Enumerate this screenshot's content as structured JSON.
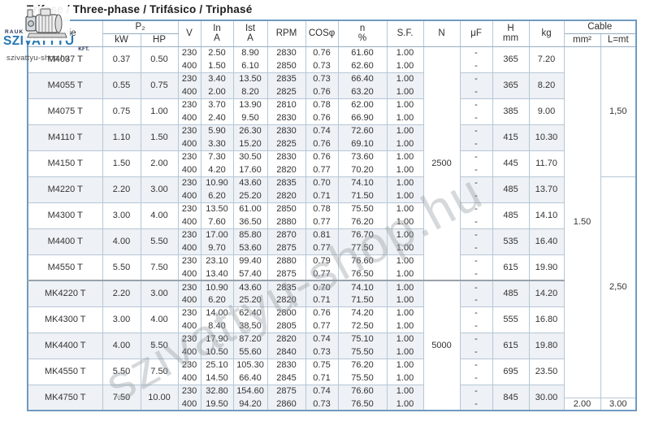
{
  "title": "Trifase / Three-phase / Trifásico / Triphasé",
  "logo": {
    "rauker": "RAUKER",
    "brand": "SZIVATTYÚ",
    "kft": "KFT.",
    "site": "szivattyu-shop.hu"
  },
  "watermark": "szivattyu-shop.hu",
  "header": {
    "serie": "Serie",
    "p2": "P₂",
    "kw": "kW",
    "hp": "HP",
    "v": "V",
    "in_a": "In\nA",
    "ist_a": "Ist\nA",
    "rpm": "RPM",
    "cos": "COSφ",
    "n_pct": "n\n%",
    "sf": "S.F.",
    "n": "N",
    "uf": "μF",
    "h_mm": "H\nmm",
    "kg": "kg",
    "cable": "Cable",
    "mm2": "mm²",
    "lmt": "L=mt"
  },
  "uf_dash": "-",
  "groups": [
    {
      "model": "M4037 T",
      "kw": "0.37",
      "hp": "0.50",
      "h": "365",
      "kg": "7.20",
      "rows": [
        [
          "230",
          "2.50",
          "8.90",
          "2830",
          "0.76",
          "61.60",
          "1.00"
        ],
        [
          "400",
          "1.50",
          "6.10",
          "2850",
          "0.73",
          "62.60",
          "1.00"
        ]
      ]
    },
    {
      "model": "M4055 T",
      "kw": "0.55",
      "hp": "0.75",
      "h": "365",
      "kg": "8.20",
      "rows": [
        [
          "230",
          "3.40",
          "13.50",
          "2835",
          "0.73",
          "66.40",
          "1.00"
        ],
        [
          "400",
          "2.00",
          "8.20",
          "2825",
          "0.76",
          "63.20",
          "1.00"
        ]
      ]
    },
    {
      "model": "M4075 T",
      "kw": "0.75",
      "hp": "1.00",
      "h": "385",
      "kg": "9.00",
      "rows": [
        [
          "230",
          "3.70",
          "13.90",
          "2810",
          "0.78",
          "62.00",
          "1.00"
        ],
        [
          "400",
          "2.40",
          "9.50",
          "2830",
          "0.76",
          "66.90",
          "1.00"
        ]
      ]
    },
    {
      "model": "M4110 T",
      "kw": "1.10",
      "hp": "1.50",
      "h": "415",
      "kg": "10.30",
      "rows": [
        [
          "230",
          "5.90",
          "26.30",
          "2830",
          "0.74",
          "72.60",
          "1.00"
        ],
        [
          "400",
          "3.30",
          "15.20",
          "2825",
          "0.76",
          "69.10",
          "1.00"
        ]
      ]
    },
    {
      "model": "M4150 T",
      "kw": "1.50",
      "hp": "2.00",
      "h": "445",
      "kg": "11.70",
      "rows": [
        [
          "230",
          "7.30",
          "30.50",
          "2830",
          "0.76",
          "73.60",
          "1.00"
        ],
        [
          "400",
          "4.20",
          "17.60",
          "2820",
          "0.77",
          "70.20",
          "1.00"
        ]
      ]
    },
    {
      "model": "M4220 T",
      "kw": "2.20",
      "hp": "3.00",
      "h": "485",
      "kg": "13.70",
      "rows": [
        [
          "230",
          "10.90",
          "43.60",
          "2835",
          "0.70",
          "74.10",
          "1.00"
        ],
        [
          "400",
          "6.20",
          "25.20",
          "2820",
          "0.71",
          "71.50",
          "1.00"
        ]
      ]
    },
    {
      "model": "M4300 T",
      "kw": "3.00",
      "hp": "4.00",
      "h": "485",
      "kg": "14.10",
      "rows": [
        [
          "230",
          "13.50",
          "61.00",
          "2850",
          "0.78",
          "75.50",
          "1.00"
        ],
        [
          "400",
          "7.60",
          "36.50",
          "2880",
          "0.77",
          "76.20",
          "1.00"
        ]
      ]
    },
    {
      "model": "M4400 T",
      "kw": "4.00",
      "hp": "5.50",
      "h": "535",
      "kg": "16.40",
      "rows": [
        [
          "230",
          "17.00",
          "85.80",
          "2870",
          "0.81",
          "76.70",
          "1.00"
        ],
        [
          "400",
          "9.70",
          "53.60",
          "2875",
          "0.77",
          "77.50",
          "1.00"
        ]
      ]
    },
    {
      "model": "M4550 T",
      "kw": "5.50",
      "hp": "7.50",
      "h": "615",
      "kg": "19.90",
      "rows": [
        [
          "230",
          "23.10",
          "99.40",
          "2880",
          "0.79",
          "76.60",
          "1.00"
        ],
        [
          "400",
          "13.40",
          "57.40",
          "2875",
          "0.77",
          "76.50",
          "1.00"
        ]
      ]
    },
    {
      "model": "MK4220 T",
      "kw": "2.20",
      "hp": "3.00",
      "h": "485",
      "kg": "14.20",
      "rows": [
        [
          "230",
          "10.90",
          "43.60",
          "2835",
          "0.70",
          "74.10",
          "1.00"
        ],
        [
          "400",
          "6.20",
          "25.20",
          "2820",
          "0.71",
          "71.50",
          "1.00"
        ]
      ]
    },
    {
      "model": "MK4300 T",
      "kw": "3.00",
      "hp": "4.00",
      "h": "555",
      "kg": "16.80",
      "rows": [
        [
          "230",
          "14.00",
          "62.40",
          "2800",
          "0.76",
          "74.20",
          "1.00"
        ],
        [
          "400",
          "8.40",
          "38.50",
          "2805",
          "0.77",
          "72.50",
          "1.00"
        ]
      ]
    },
    {
      "model": "MK4400 T",
      "kw": "4.00",
      "hp": "5.50",
      "h": "615",
      "kg": "19.80",
      "rows": [
        [
          "230",
          "17.90",
          "87.20",
          "2820",
          "0.74",
          "75.10",
          "1.00"
        ],
        [
          "400",
          "10.50",
          "55.60",
          "2840",
          "0.73",
          "75.50",
          "1.00"
        ]
      ]
    },
    {
      "model": "MK4550 T",
      "kw": "5.50",
      "hp": "7.50",
      "h": "695",
      "kg": "23.50",
      "rows": [
        [
          "230",
          "25.10",
          "105.30",
          "2830",
          "0.75",
          "76.20",
          "1.00"
        ],
        [
          "400",
          "14.50",
          "66.40",
          "2845",
          "0.71",
          "75.50",
          "1.00"
        ]
      ]
    },
    {
      "model": "MK4750 T",
      "kw": "7.50",
      "hp": "10.00",
      "h": "845",
      "kg": "30.00",
      "rows": [
        [
          "230",
          "32.80",
          "154.60",
          "2875",
          "0.74",
          "76.60",
          "1.00"
        ],
        [
          "400",
          "19.50",
          "94.20",
          "2860",
          "0.73",
          "76.50",
          "1.00"
        ]
      ]
    }
  ],
  "n_spans": [
    {
      "row": 1,
      "span": 18,
      "value": "2500"
    },
    {
      "row": 19,
      "span": 10,
      "value": "5000"
    }
  ],
  "cable_spans": {
    "mm2": [
      {
        "row": 1,
        "span": 27,
        "value": "1.50"
      },
      {
        "row": 28,
        "span": 1,
        "value": "2.00"
      }
    ],
    "lmt": [
      {
        "row": 1,
        "span": 10,
        "value": "1,50"
      },
      {
        "row": 11,
        "span": 17,
        "value": "2,50"
      },
      {
        "row": 28,
        "span": 1,
        "value": "3.00"
      }
    ]
  },
  "colors": {
    "outer_border": "#6f9bc0",
    "grid_line": "#b6c7d6",
    "block_separator": "#99a2ac",
    "row_shade": "#eef1f5",
    "brand_blue": "#2478b4",
    "watermark_gray": "#949aa0"
  }
}
